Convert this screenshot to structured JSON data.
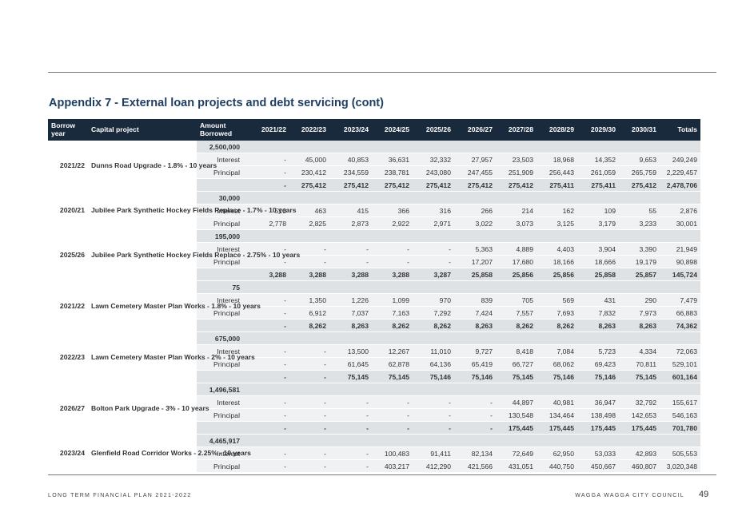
{
  "title": "Appendix 7 - External loan projects and debt servicing (cont)",
  "headers": {
    "borrow_year": "Borrow year",
    "capital_project": "Capital project",
    "amount_borrowed": "Amount Borrowed",
    "years": [
      "2021/22",
      "2022/23",
      "2023/24",
      "2024/25",
      "2025/26",
      "2026/27",
      "2027/28",
      "2028/29",
      "2029/30",
      "2030/31"
    ],
    "totals": "Totals"
  },
  "groups": [
    {
      "year": "2021/22",
      "project": "Dunns Road Upgrade - 1.8% - 10 years",
      "amount": "2,500,000",
      "interest": {
        "label": "Interest",
        "values": [
          "-",
          "45,000",
          "40,853",
          "36,631",
          "32,332",
          "27,957",
          "23,503",
          "18,968",
          "14,352",
          "9,653"
        ],
        "total": "249,249"
      },
      "principal": {
        "label": "Principal",
        "values": [
          "-",
          "230,412",
          "234,559",
          "238,781",
          "243,080",
          "247,455",
          "251,909",
          "256,443",
          "261,059",
          "265,759"
        ],
        "total": "2,229,457"
      },
      "subtotal": {
        "values": [
          "-",
          "275,412",
          "275,412",
          "275,412",
          "275,412",
          "275,412",
          "275,412",
          "275,411",
          "275,411",
          "275,412"
        ],
        "total": "2,478,706"
      }
    },
    {
      "year": "2020/21",
      "project": "Jubilee Park Synthetic Hockey Fields Replace - 1.7% - 10 years",
      "amount": "30,000",
      "interest": {
        "label": "Interest",
        "values": [
          "510",
          "463",
          "415",
          "366",
          "316",
          "266",
          "214",
          "162",
          "109",
          "55"
        ],
        "total": "2,876"
      },
      "principal": {
        "label": "Principal",
        "values": [
          "2,778",
          "2,825",
          "2,873",
          "2,922",
          "2,971",
          "3,022",
          "3,073",
          "3,125",
          "3,179",
          "3,233"
        ],
        "total": "30,001"
      }
    },
    {
      "year": "2025/26",
      "project": "Jubilee Park Synthetic Hockey Fields Replace - 2.75% - 10 years",
      "amount": "195,000",
      "interest": {
        "label": "Interest",
        "values": [
          "-",
          "-",
          "-",
          "-",
          "-",
          "5,363",
          "4,889",
          "4,403",
          "3,904",
          "3,390"
        ],
        "total": "21,949"
      },
      "principal": {
        "label": "Principal",
        "values": [
          "-",
          "-",
          "-",
          "-",
          "-",
          "17,207",
          "17,680",
          "18,166",
          "18,666",
          "19,179"
        ],
        "total": "90,898"
      },
      "subtotal": {
        "values": [
          "3,288",
          "3,288",
          "3,288",
          "3,288",
          "3,287",
          "25,858",
          "25,856",
          "25,856",
          "25,858",
          "25,857"
        ],
        "total": "145,724"
      }
    },
    {
      "year": "2021/22",
      "project": "Lawn Cemetery Master Plan Works - 1.8% - 10 years",
      "amount": "75",
      "interest": {
        "label": "Interest",
        "values": [
          "-",
          "1,350",
          "1,226",
          "1,099",
          "970",
          "839",
          "705",
          "569",
          "431",
          "290"
        ],
        "total": "7,479"
      },
      "principal": {
        "label": "Principal",
        "values": [
          "-",
          "6,912",
          "7,037",
          "7,163",
          "7,292",
          "7,424",
          "7,557",
          "7,693",
          "7,832",
          "7,973"
        ],
        "total": "66,883"
      },
      "subtotal": {
        "values": [
          "-",
          "8,262",
          "8,263",
          "8,262",
          "8,262",
          "8,263",
          "8,262",
          "8,262",
          "8,263",
          "8,263"
        ],
        "total": "74,362"
      }
    },
    {
      "year": "2022/23",
      "project": "Lawn Cemetery Master Plan Works - 2% - 10 years",
      "amount": "675,000",
      "interest": {
        "label": "Interest",
        "values": [
          "-",
          "-",
          "13,500",
          "12,267",
          "11,010",
          "9,727",
          "8,418",
          "7,084",
          "5,723",
          "4,334"
        ],
        "total": "72,063"
      },
      "principal": {
        "label": "Principal",
        "values": [
          "-",
          "-",
          "61,645",
          "62,878",
          "64,136",
          "65,419",
          "66,727",
          "68,062",
          "69,423",
          "70,811"
        ],
        "total": "529,101"
      },
      "subtotal": {
        "values": [
          "-",
          "-",
          "75,145",
          "75,145",
          "75,146",
          "75,146",
          "75,145",
          "75,146",
          "75,146",
          "75,145"
        ],
        "total": "601,164"
      }
    },
    {
      "year": "2026/27",
      "project": "Bolton Park Upgrade - 3% - 10 years",
      "amount": "1,496,581",
      "interest": {
        "label": "Interest",
        "values": [
          "-",
          "-",
          "-",
          "-",
          "-",
          "-",
          "44,897",
          "40,981",
          "36,947",
          "32,792"
        ],
        "total": "155,617"
      },
      "principal": {
        "label": "Principal",
        "values": [
          "-",
          "-",
          "-",
          "-",
          "-",
          "-",
          "130,548",
          "134,464",
          "138,498",
          "142,653"
        ],
        "total": "546,163"
      },
      "subtotal": {
        "values": [
          "-",
          "-",
          "-",
          "-",
          "-",
          "-",
          "175,445",
          "175,445",
          "175,445",
          "175,445"
        ],
        "total": "701,780"
      }
    },
    {
      "year": "2023/24",
      "project": "Glenfield Road Corridor Works - 2.25% - 10 years",
      "amount": "4,465,917",
      "interest": {
        "label": "Interest",
        "values": [
          "-",
          "-",
          "-",
          "100,483",
          "91,411",
          "82,134",
          "72,649",
          "62,950",
          "53,033",
          "42,893"
        ],
        "total": "505,553"
      },
      "principal": {
        "label": "Principal",
        "values": [
          "-",
          "-",
          "-",
          "403,217",
          "412,290",
          "421,566",
          "431,051",
          "440,750",
          "450,667",
          "460,807"
        ],
        "total": "3,020,348"
      }
    }
  ],
  "footer": {
    "left": "LONG TERM FINANCIAL PLAN 2021-2022",
    "right": "WAGGA WAGGA CITY COUNCIL",
    "page": "49"
  }
}
